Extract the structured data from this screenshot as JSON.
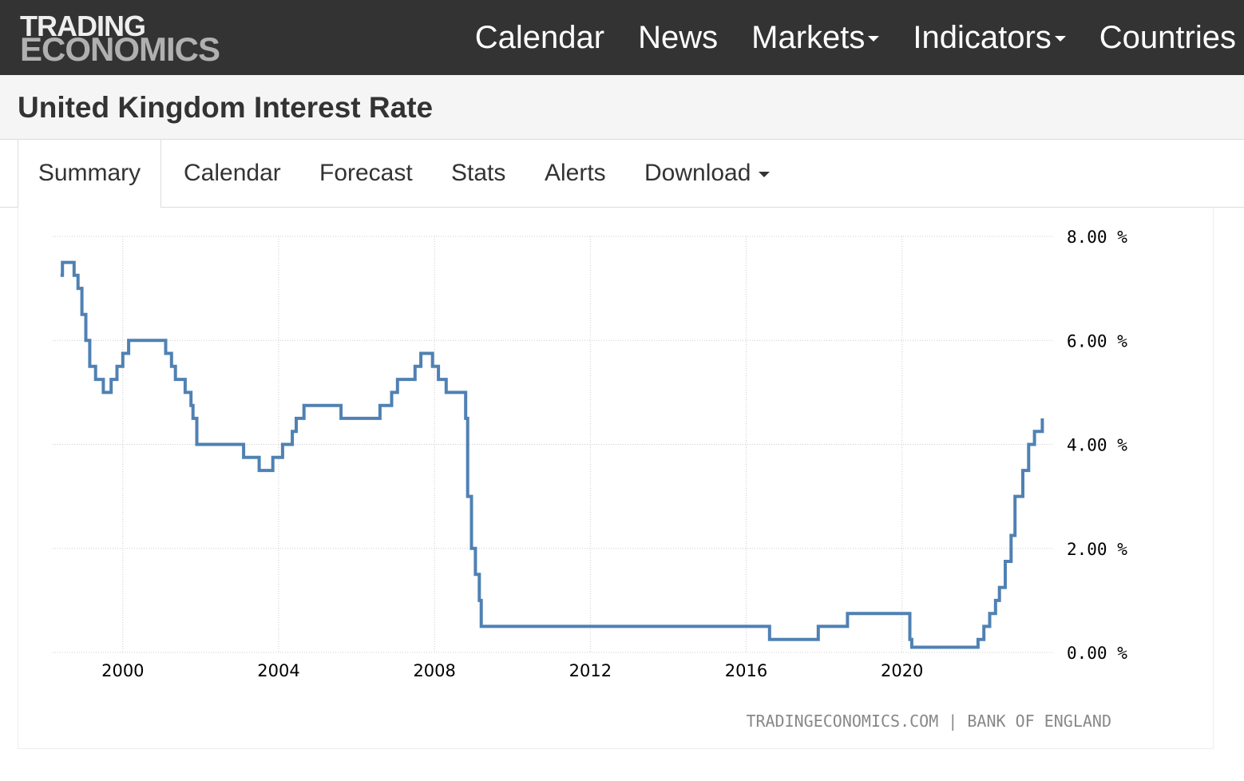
{
  "header": {
    "logo_line1": "TRADING",
    "logo_line2": "ECONOMICS",
    "nav": [
      {
        "label": "Calendar",
        "dropdown": false
      },
      {
        "label": "News",
        "dropdown": false
      },
      {
        "label": "Markets",
        "dropdown": true
      },
      {
        "label": "Indicators",
        "dropdown": true
      },
      {
        "label": "Countries",
        "dropdown": false
      }
    ]
  },
  "page_title": "United Kingdom Interest Rate",
  "tabs": [
    {
      "label": "Summary",
      "active": true
    },
    {
      "label": "Calendar",
      "active": false
    },
    {
      "label": "Forecast",
      "active": false
    },
    {
      "label": "Stats",
      "active": false
    },
    {
      "label": "Alerts",
      "active": false
    },
    {
      "label": "Download",
      "active": false,
      "dropdown": true
    }
  ],
  "colors": {
    "topbar": "#333333",
    "line": "#4f81b3",
    "grid": "#cccccc",
    "source_text": "#888888"
  },
  "chart_data": {
    "type": "line",
    "title": "",
    "xlabel": "",
    "ylabel": "",
    "ylim": [
      0,
      8
    ],
    "xlim": [
      1998.2,
      2023.9
    ],
    "y_ticks": [
      "0.00 %",
      "2.00 %",
      "4.00 %",
      "6.00 %",
      "8.00 %"
    ],
    "y_tick_values": [
      0,
      2,
      4,
      6,
      8
    ],
    "x_ticks": [
      "2000",
      "2004",
      "2008",
      "2012",
      "2016",
      "2020"
    ],
    "x_tick_values": [
      2000,
      2004,
      2008,
      2012,
      2016,
      2020
    ],
    "grid": true,
    "step": true,
    "source": "TRADINGECONOMICS.COM | BANK OF ENGLAND",
    "series": [
      {
        "points": [
          [
            1998.4,
            7.25
          ],
          [
            1998.45,
            7.5
          ],
          [
            1998.75,
            7.25
          ],
          [
            1998.85,
            7.0
          ],
          [
            1998.95,
            6.5
          ],
          [
            1999.05,
            6.0
          ],
          [
            1999.15,
            5.5
          ],
          [
            1999.3,
            5.25
          ],
          [
            1999.5,
            5.0
          ],
          [
            1999.7,
            5.25
          ],
          [
            1999.85,
            5.5
          ],
          [
            2000.0,
            5.75
          ],
          [
            2000.15,
            6.0
          ],
          [
            2001.1,
            5.75
          ],
          [
            2001.25,
            5.5
          ],
          [
            2001.35,
            5.25
          ],
          [
            2001.6,
            5.0
          ],
          [
            2001.75,
            4.75
          ],
          [
            2001.8,
            4.5
          ],
          [
            2001.9,
            4.0
          ],
          [
            2003.1,
            3.75
          ],
          [
            2003.5,
            3.5
          ],
          [
            2003.85,
            3.75
          ],
          [
            2004.1,
            4.0
          ],
          [
            2004.35,
            4.25
          ],
          [
            2004.45,
            4.5
          ],
          [
            2004.65,
            4.75
          ],
          [
            2005.6,
            4.5
          ],
          [
            2006.6,
            4.75
          ],
          [
            2006.9,
            5.0
          ],
          [
            2007.05,
            5.25
          ],
          [
            2007.5,
            5.5
          ],
          [
            2007.65,
            5.75
          ],
          [
            2007.95,
            5.5
          ],
          [
            2008.1,
            5.25
          ],
          [
            2008.3,
            5.0
          ],
          [
            2008.8,
            4.5
          ],
          [
            2008.85,
            3.0
          ],
          [
            2008.95,
            2.0
          ],
          [
            2009.05,
            1.5
          ],
          [
            2009.15,
            1.0
          ],
          [
            2009.2,
            0.5
          ],
          [
            2016.6,
            0.25
          ],
          [
            2017.85,
            0.5
          ],
          [
            2018.6,
            0.75
          ],
          [
            2020.2,
            0.25
          ],
          [
            2020.25,
            0.1
          ],
          [
            2021.95,
            0.25
          ],
          [
            2022.1,
            0.5
          ],
          [
            2022.25,
            0.75
          ],
          [
            2022.4,
            1.0
          ],
          [
            2022.5,
            1.25
          ],
          [
            2022.65,
            1.75
          ],
          [
            2022.8,
            2.25
          ],
          [
            2022.9,
            3.0
          ],
          [
            2023.1,
            3.5
          ],
          [
            2023.25,
            4.0
          ],
          [
            2023.4,
            4.25
          ],
          [
            2023.6,
            4.5
          ]
        ]
      }
    ]
  }
}
